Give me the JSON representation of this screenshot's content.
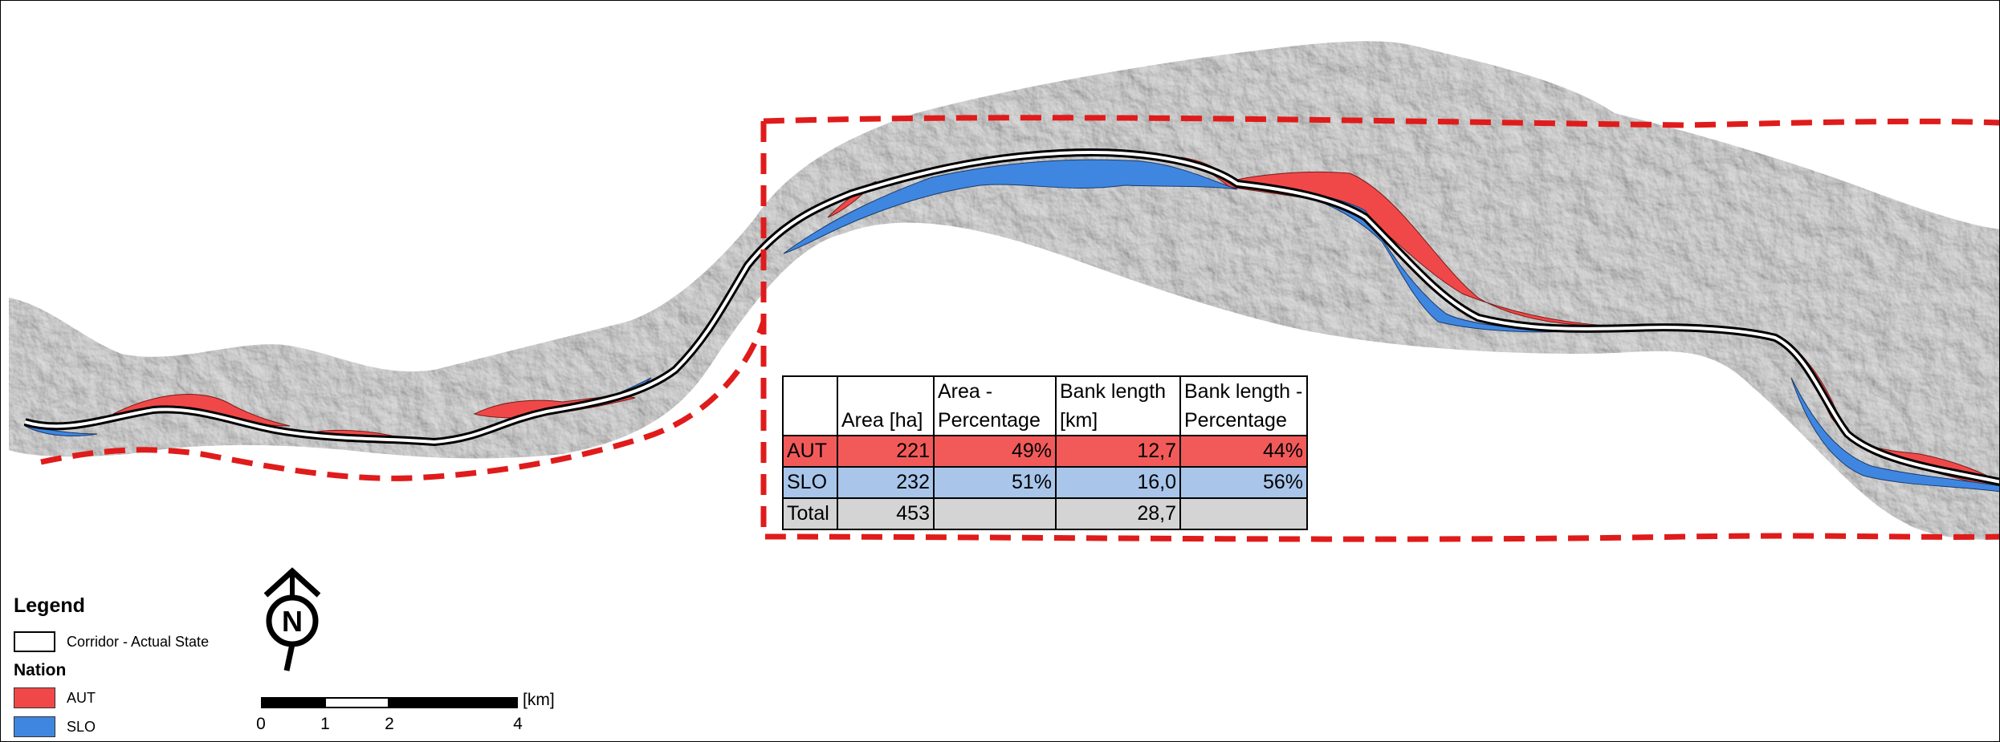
{
  "table": {
    "headers": [
      "",
      "Area [ha]",
      "Area -\nPercentage",
      "Bank length\n[km]",
      "Bank length -\nPercentage"
    ],
    "rows": [
      {
        "label": "AUT",
        "area": "221",
        "area_pct": "49%",
        "bank": "12,7",
        "bank_pct": "44%"
      },
      {
        "label": "SLO",
        "area": "232",
        "area_pct": "51%",
        "bank": "16,0",
        "bank_pct": "56%"
      },
      {
        "label": "Total",
        "area": "453",
        "area_pct": "",
        "bank": "28,7",
        "bank_pct": ""
      }
    ]
  },
  "legend": {
    "title": "Legend",
    "corridor_label": "Corridor - Actual State",
    "nation_title": "Nation",
    "aut_label": "AUT",
    "slo_label": "SLO"
  },
  "north_arrow": {
    "label": "N"
  },
  "scale": {
    "ticks": [
      "0",
      "1",
      "2",
      "4"
    ],
    "unit": "[km]"
  },
  "colors": {
    "aut": "#f04848",
    "slo": "#3f86e0",
    "terrain": "#b8b8b8",
    "study_area": "#e01b1b",
    "corridor": "#000000"
  }
}
